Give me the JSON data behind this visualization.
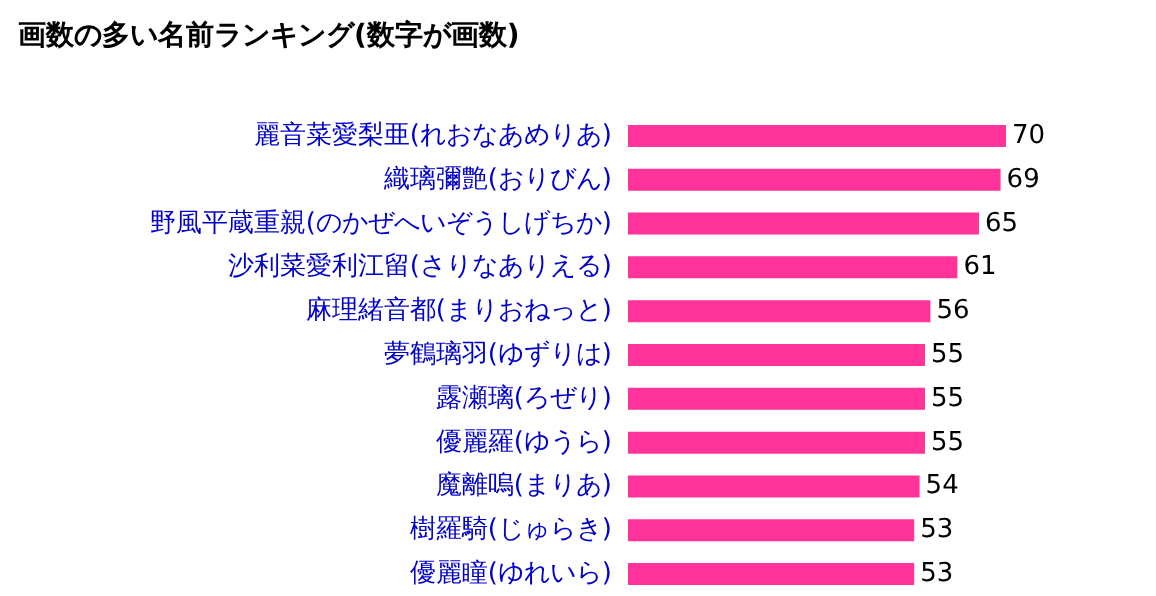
{
  "chart_data": {
    "type": "bar",
    "orientation": "horizontal",
    "title": "画数の多い名前ランキング(数字が画数)",
    "categories": [
      "麗音菜愛梨亜(れおなあめりあ)",
      "織璃彌艶(おりびん)",
      "野風平蔵重親(のかぜへいぞうしげちか)",
      "沙利菜愛利江留(さりなありえる)",
      "麻理緒音都(まりおねっと)",
      "夢鶴璃羽(ゆずりは)",
      "露瀬璃(ろぜり)",
      "優麗羅(ゆうら)",
      "魔離嗚(まりあ)",
      "樹羅騎(じゅらき)",
      "優麗瞳(ゆれいら)"
    ],
    "values": [
      70,
      69,
      65,
      61,
      56,
      55,
      55,
      55,
      54,
      53,
      53
    ],
    "color": "#ff3399",
    "data_labels": true,
    "tick_labels": "y"
  }
}
